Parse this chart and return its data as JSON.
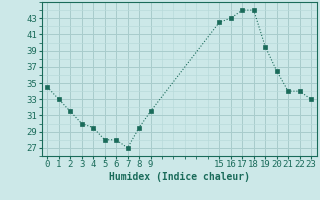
{
  "x": [
    0,
    1,
    2,
    3,
    4,
    5,
    6,
    7,
    8,
    9,
    15,
    16,
    17,
    18,
    19,
    20,
    21,
    22,
    23
  ],
  "y": [
    34.5,
    33.0,
    31.5,
    30.0,
    29.5,
    28.0,
    28.0,
    27.0,
    29.5,
    31.5,
    42.5,
    43.0,
    44.0,
    44.0,
    39.5,
    36.5,
    34.0,
    34.0,
    33.0
  ],
  "line_color": "#1a6b5a",
  "marker_color": "#1a6b5a",
  "bg_color": "#cce8e8",
  "grid_color_minor": "#b8dada",
  "grid_color_major": "#a8cccc",
  "xlabel": "Humidex (Indice chaleur)",
  "xlim": [
    -0.5,
    23.5
  ],
  "ylim": [
    26,
    45
  ],
  "yticks": [
    27,
    29,
    31,
    33,
    35,
    37,
    39,
    41,
    43
  ],
  "xticks": [
    0,
    1,
    2,
    3,
    4,
    5,
    6,
    7,
    8,
    9,
    15,
    16,
    17,
    18,
    19,
    20,
    21,
    22,
    23
  ],
  "xlabel_fontsize": 7,
  "tick_fontsize": 6.5
}
